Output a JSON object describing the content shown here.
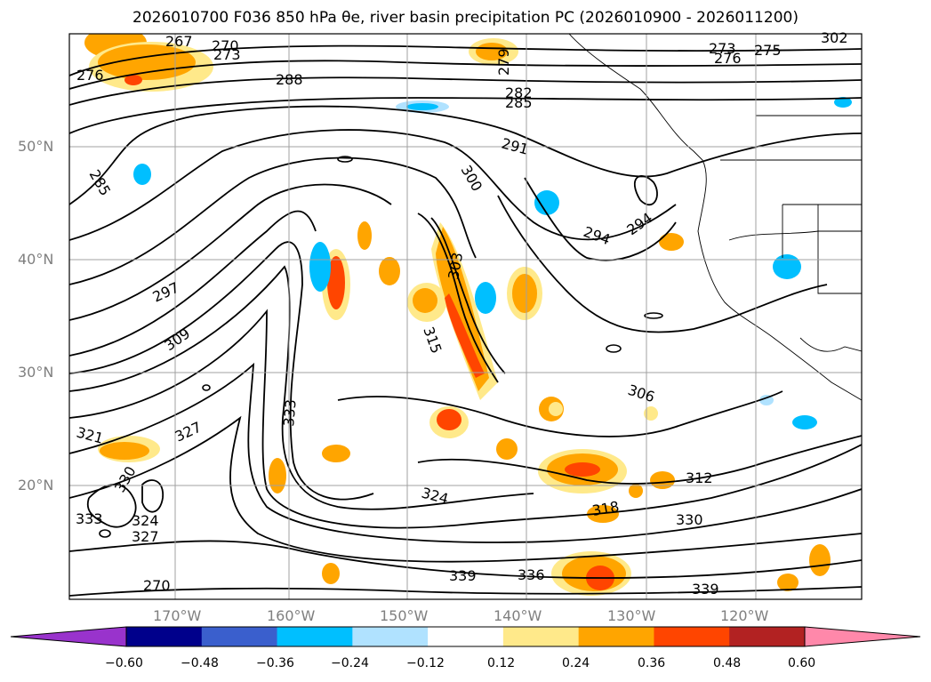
{
  "title": "2026010700 F036 850 hPa θe, river basin precipitation PC (2026010900 - 2026011200)",
  "lat_labels": [
    "50°N",
    "40°N",
    "30°N",
    "20°N"
  ],
  "lon_labels": [
    "170°W",
    "160°W",
    "150°W",
    "140°W",
    "130°W",
    "120°W"
  ],
  "contour_labels": [
    "267",
    "270",
    "273",
    "276",
    "279",
    "282",
    "285",
    "285",
    "288",
    "291",
    "294",
    "294",
    "297",
    "300",
    "303",
    "306",
    "309",
    "312",
    "315",
    "318",
    "321",
    "324",
    "324",
    "327",
    "327",
    "330",
    "330",
    "333",
    "333",
    "336",
    "339",
    "339",
    "270",
    "273",
    "276",
    "275",
    "302"
  ],
  "colorbar": {
    "ticks": [
      "−0.60",
      "−0.48",
      "−0.36",
      "−0.24",
      "−0.12",
      "0.12",
      "0.24",
      "0.36",
      "0.48",
      "0.60"
    ],
    "colors": [
      "#9933cc",
      "#00008b",
      "#3a5fcd",
      "#00bfff",
      "#b0e2ff",
      "#ffffff",
      "#ffe98a",
      "#ffa500",
      "#ff4500",
      "#b22222",
      "#ff88aa"
    ]
  },
  "colors": {
    "neg_fill": "#00bfff",
    "neg_light": "#b0e2ff",
    "pos_light": "#ffe98a",
    "pos_mid": "#ffa500",
    "pos_high": "#ff4500",
    "contour": "#000000",
    "border": "#000000"
  }
}
